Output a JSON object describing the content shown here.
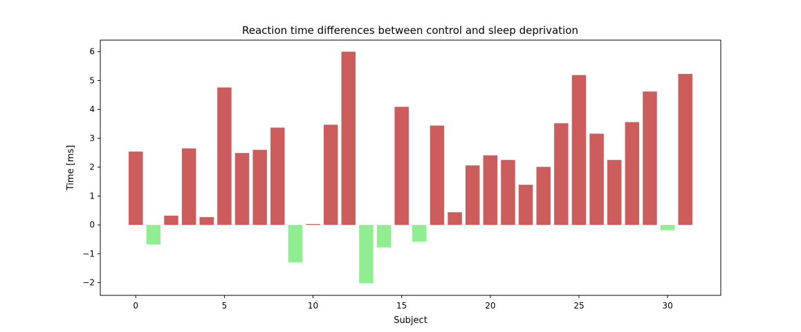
{
  "chart_data": {
    "type": "bar",
    "title": "Reaction time differences between control and sleep deprivation",
    "xlabel": "Subject",
    "ylabel": "Time [ms]",
    "x": [
      0,
      1,
      2,
      3,
      4,
      5,
      6,
      7,
      8,
      9,
      10,
      11,
      12,
      13,
      14,
      15,
      16,
      17,
      18,
      19,
      20,
      21,
      22,
      23,
      24,
      25,
      26,
      27,
      28,
      29,
      30,
      31
    ],
    "values": [
      2.54,
      -0.68,
      0.32,
      2.65,
      0.27,
      4.76,
      2.49,
      2.6,
      3.37,
      -1.3,
      0.03,
      3.47,
      6.0,
      -2.02,
      -0.78,
      4.09,
      -0.58,
      3.44,
      0.44,
      2.06,
      2.41,
      2.25,
      1.39,
      2.01,
      3.52,
      5.19,
      3.16,
      2.25,
      3.56,
      4.62,
      -0.18,
      5.23
    ],
    "xlim": [
      -2,
      33
    ],
    "ylim": [
      -2.44,
      6.4
    ],
    "xticks": [
      0,
      5,
      10,
      15,
      20,
      25,
      30
    ],
    "yticks": [
      -2,
      -1,
      0,
      1,
      2,
      3,
      4,
      5,
      6
    ],
    "positive_color": "#cd5c5c",
    "negative_color": "#90ee90",
    "grid": false
  }
}
